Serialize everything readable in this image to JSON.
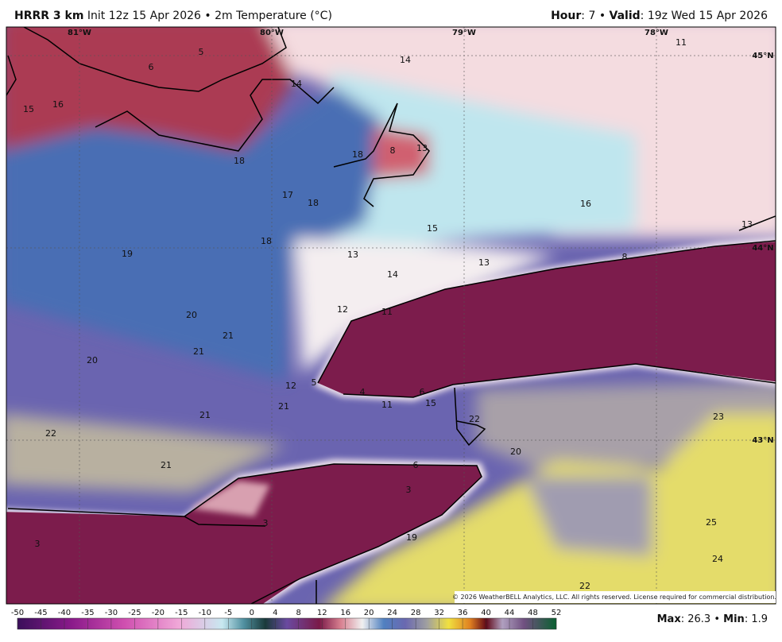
{
  "header": {
    "model": "HRRR 3 km",
    "init": "Init 12z 15 Apr 2026",
    "separator": "•",
    "field": "2m Temperature (°C)",
    "hour_label": "Hour",
    "hour_value": ": 7",
    "valid_label": "Valid",
    "valid_value": ": 19z Wed 15 Apr 2026"
  },
  "longitudes": [
    "81°W",
    "80°W",
    "79°W",
    "78°W"
  ],
  "latitudes": [
    "45°N",
    "44°N",
    "43°N"
  ],
  "station_values": [
    5,
    6,
    14,
    14,
    11,
    15,
    16,
    18,
    8,
    13,
    18,
    17,
    18,
    16,
    15,
    13,
    18,
    19,
    13,
    8,
    13,
    14,
    12,
    11,
    20,
    21,
    21,
    20,
    12,
    5,
    4,
    6,
    11,
    15,
    21,
    21,
    22,
    23,
    22,
    20,
    21,
    6,
    3,
    3,
    25,
    19,
    3,
    24,
    22
  ],
  "copyright": "© 2026 WeatherBELL Analytics, LLC. All rights reserved. License required for commercial distribution.",
  "colorbar_ticks": [
    -50,
    -45,
    -40,
    -35,
    -30,
    -25,
    -20,
    -15,
    -10,
    -5,
    0,
    4,
    8,
    12,
    16,
    20,
    24,
    28,
    32,
    36,
    40,
    44,
    48,
    52
  ],
  "footer": {
    "max_label": "Max",
    "max_value": ": 26.3",
    "separator": "•",
    "min_label": "Min",
    "min_value": ": 1.9"
  }
}
